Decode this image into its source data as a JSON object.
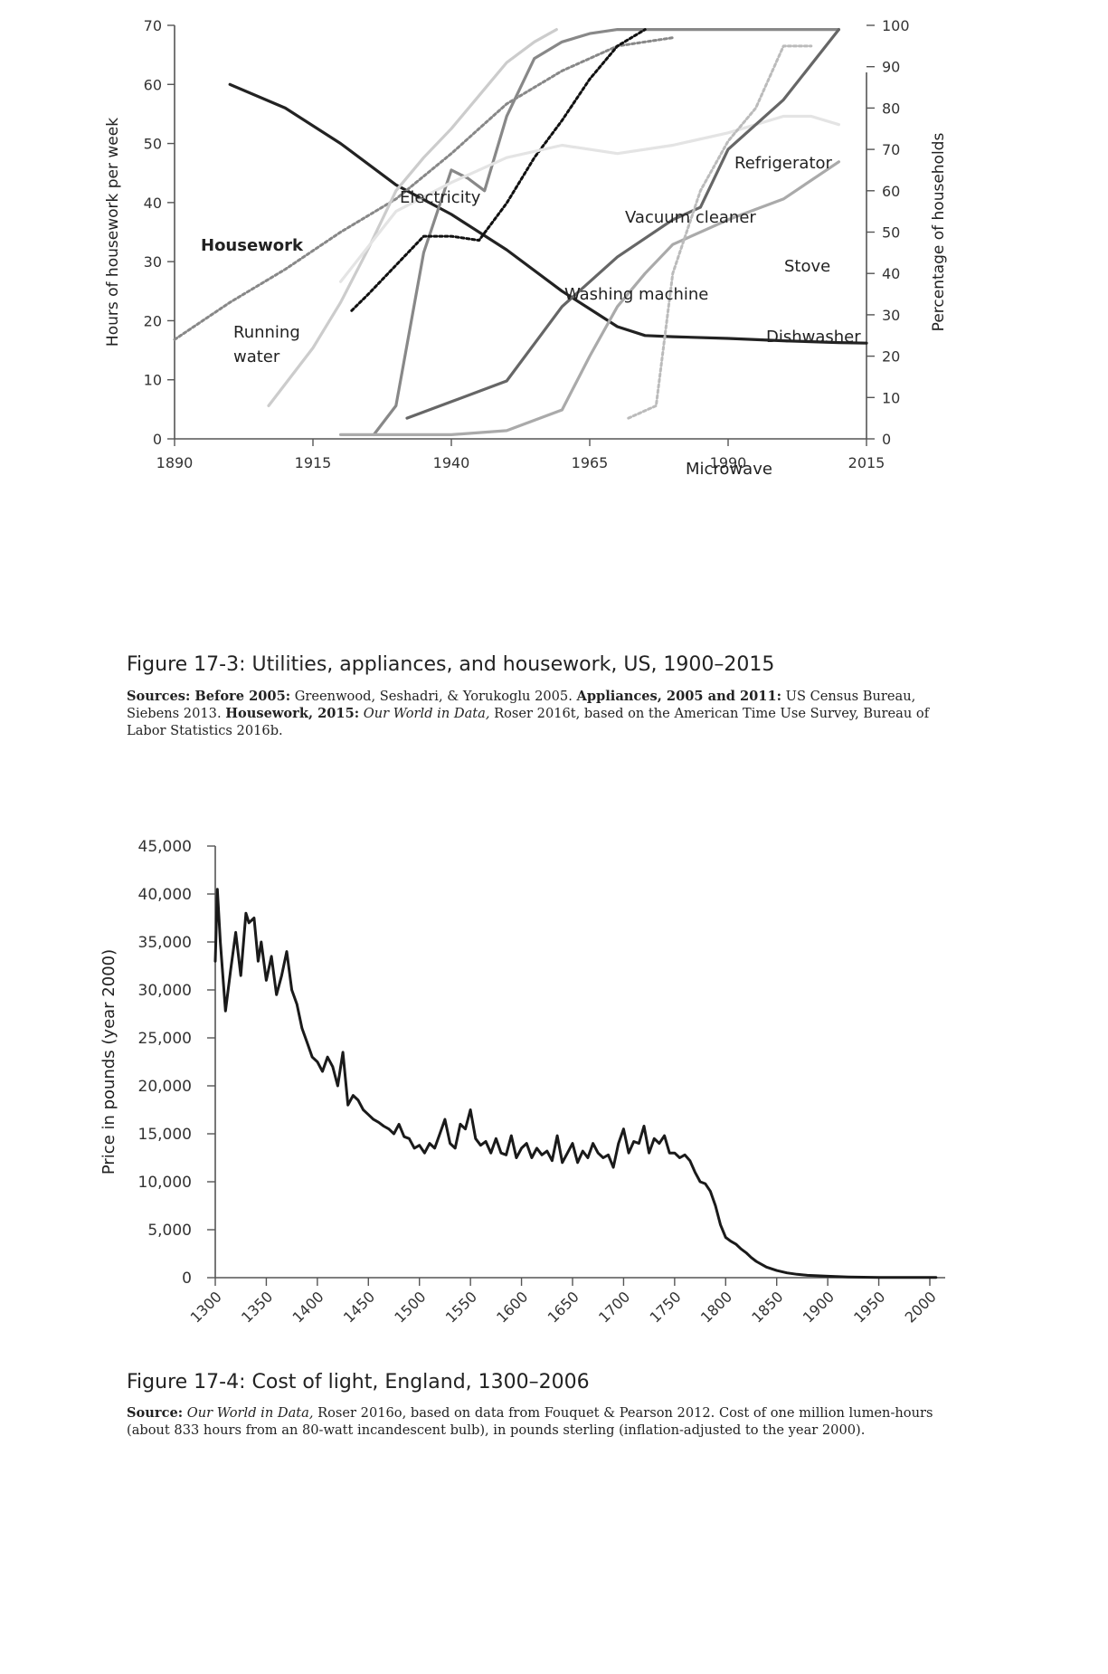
{
  "chart_data": [
    {
      "type": "line",
      "title": "",
      "xlabel": "",
      "ylabel": "Hours of housework per week",
      "y2label": "Percentage of households",
      "xlim": [
        1890,
        2015
      ],
      "ylim": [
        0,
        70
      ],
      "y2lim": [
        0,
        100
      ],
      "x_ticks": [
        "1890",
        "1915",
        "1940",
        "1965",
        "1990",
        "2015"
      ],
      "y_ticks": [
        "0",
        "10",
        "20",
        "30",
        "40",
        "50",
        "60",
        "70"
      ],
      "y2_ticks": [
        "0",
        "10",
        "20",
        "30",
        "40",
        "50",
        "60",
        "70",
        "80",
        "90",
        "100"
      ],
      "grid": false,
      "series": [
        {
          "name": "Housework",
          "axis": "left",
          "style": "solid",
          "color": "#222222",
          "x": [
            1900,
            1910,
            1920,
            1930,
            1940,
            1950,
            1960,
            1965,
            1970,
            1975,
            1980,
            1990,
            2000,
            2010,
            2015
          ],
          "y": [
            60,
            56,
            50,
            43,
            38,
            32,
            25,
            22,
            19,
            17.5,
            17.3,
            17,
            16.6,
            16.3,
            16.2
          ]
        },
        {
          "name": "Running water",
          "axis": "right",
          "style": "dotted",
          "color": "#888888",
          "x": [
            1890,
            1900,
            1910,
            1920,
            1930,
            1940,
            1950,
            1960,
            1970,
            1980
          ],
          "y": [
            24,
            33,
            41,
            50,
            58,
            69,
            81,
            89,
            95,
            97
          ]
        },
        {
          "name": "Electricity",
          "axis": "right",
          "style": "solid",
          "color": "#cccccc",
          "x": [
            1907,
            1915,
            1920,
            1925,
            1930,
            1935,
            1940,
            1945,
            1950,
            1955,
            1959
          ],
          "y": [
            8,
            22,
            33,
            46,
            60,
            68,
            75,
            83,
            91,
            96,
            99
          ]
        },
        {
          "name": "Refrigerator",
          "axis": "right",
          "style": "solid",
          "color": "#888888",
          "x": [
            1926,
            1930,
            1935,
            1940,
            1943,
            1946,
            1950,
            1955,
            1960,
            1965,
            1970,
            1980,
            1990,
            2000,
            2010
          ],
          "y": [
            1,
            8,
            45,
            65,
            63,
            60,
            78,
            92,
            96,
            98,
            99,
            99,
            99,
            99,
            99
          ]
        },
        {
          "name": "Vacuum cleaner",
          "axis": "right",
          "style": "dotted",
          "color": "#111111",
          "x": [
            1922,
            1925,
            1930,
            1935,
            1940,
            1945,
            1950,
            1955,
            1960,
            1965,
            1970,
            1975
          ],
          "y": [
            31,
            35,
            42,
            49,
            49,
            48,
            57,
            68,
            77,
            87,
            95,
            99
          ]
        },
        {
          "name": "Washing machine",
          "axis": "right",
          "style": "solid",
          "color": "#e4e4e4",
          "x": [
            1920,
            1930,
            1940,
            1950,
            1960,
            1970,
            1980,
            1990,
            2000,
            2005,
            2010
          ],
          "y": [
            38,
            55,
            62,
            68,
            71,
            69,
            71,
            74,
            78,
            78,
            76
          ]
        },
        {
          "name": "Stove",
          "axis": "right",
          "style": "solid",
          "color": "#666666",
          "x": [
            1932,
            1940,
            1950,
            1955,
            1960,
            1970,
            1980,
            1985,
            1990,
            2000,
            2010
          ],
          "y": [
            5,
            9,
            14,
            23,
            32,
            44,
            53,
            56,
            70,
            82,
            99
          ]
        },
        {
          "name": "Dishwasher",
          "axis": "right",
          "style": "solid",
          "color": "#aaaaaa",
          "x": [
            1920,
            1940,
            1950,
            1960,
            1965,
            1970,
            1975,
            1980,
            1990,
            2000,
            2010
          ],
          "y": [
            1,
            1,
            2,
            7,
            20,
            32,
            40,
            47,
            53,
            58,
            67
          ]
        },
        {
          "name": "Microwave",
          "axis": "right",
          "style": "dotted",
          "color": "#bbbbbb",
          "x": [
            1972,
            1977,
            1980,
            1985,
            1990,
            1995,
            2000,
            2005
          ],
          "y": [
            5,
            8,
            40,
            60,
            72,
            80,
            95,
            95
          ]
        }
      ]
    },
    {
      "type": "line",
      "title": "",
      "xlabel": "",
      "ylabel": "Price in pounds (year 2000)",
      "xlim": [
        1300,
        2010
      ],
      "ylim": [
        0,
        45000
      ],
      "x_ticks": [
        "1300",
        "1350",
        "1400",
        "1450",
        "1500",
        "1550",
        "1600",
        "1650",
        "1700",
        "1750",
        "1800",
        "1850",
        "1900",
        "1950",
        "2000"
      ],
      "y_ticks": [
        "0",
        "5,000",
        "10,000",
        "15,000",
        "20,000",
        "25,000",
        "30,000",
        "35,000",
        "40,000",
        "45,000"
      ],
      "grid": false,
      "series": [
        {
          "name": "",
          "color": "#1a1a1a",
          "x": [
            1300,
            1302,
            1305,
            1310,
            1315,
            1320,
            1325,
            1330,
            1333,
            1338,
            1342,
            1345,
            1350,
            1355,
            1360,
            1365,
            1370,
            1375,
            1380,
            1385,
            1390,
            1395,
            1400,
            1405,
            1410,
            1415,
            1420,
            1425,
            1430,
            1435,
            1440,
            1445,
            1450,
            1455,
            1460,
            1465,
            1470,
            1475,
            1480,
            1485,
            1490,
            1495,
            1500,
            1505,
            1510,
            1515,
            1520,
            1525,
            1530,
            1535,
            1540,
            1545,
            1550,
            1555,
            1560,
            1565,
            1570,
            1575,
            1580,
            1585,
            1590,
            1595,
            1600,
            1605,
            1610,
            1615,
            1620,
            1625,
            1630,
            1635,
            1640,
            1645,
            1650,
            1655,
            1660,
            1665,
            1670,
            1675,
            1680,
            1685,
            1690,
            1695,
            1700,
            1705,
            1710,
            1715,
            1720,
            1725,
            1730,
            1735,
            1740,
            1745,
            1750,
            1755,
            1760,
            1765,
            1770,
            1775,
            1780,
            1785,
            1790,
            1795,
            1800,
            1805,
            1810,
            1815,
            1820,
            1825,
            1830,
            1840,
            1850,
            1860,
            1870,
            1880,
            1890,
            1900,
            1920,
            1950,
            2006
          ],
          "y": [
            33000,
            40500,
            35000,
            27800,
            32000,
            36000,
            31500,
            38000,
            37000,
            37500,
            33000,
            35000,
            31000,
            33500,
            29500,
            31500,
            34000,
            30000,
            28500,
            26000,
            24500,
            23000,
            22500,
            21500,
            23000,
            22000,
            20000,
            23500,
            18000,
            19000,
            18500,
            17500,
            17000,
            16500,
            16200,
            15800,
            15500,
            15000,
            16000,
            14700,
            14500,
            13500,
            13800,
            13000,
            14000,
            13500,
            15000,
            16500,
            14000,
            13500,
            16000,
            15500,
            17500,
            14500,
            13800,
            14200,
            13000,
            14500,
            13000,
            12800,
            14800,
            12500,
            13500,
            14000,
            12500,
            13500,
            12800,
            13200,
            12200,
            14800,
            12000,
            13000,
            14000,
            12000,
            13200,
            12500,
            14000,
            13000,
            12500,
            12800,
            11500,
            14000,
            15500,
            13000,
            14200,
            14000,
            15800,
            13000,
            14500,
            14000,
            14800,
            13000,
            13000,
            12500,
            12800,
            12200,
            11000,
            10000,
            9800,
            9000,
            7500,
            5500,
            4200,
            3800,
            3500,
            3000,
            2600,
            2100,
            1700,
            1100,
            750,
            500,
            350,
            250,
            200,
            150,
            80,
            30,
            20
          ]
        }
      ]
    }
  ],
  "captions": {
    "fig1_title": "Figure 17-3: Utilities, appliances, and housework, US, 1900–2015",
    "fig1_source": {
      "s1_label": "Sources: Before 2005:",
      "s1_text": " Greenwood, Seshadri, & Yorukoglu 2005. ",
      "s2_label": "Appliances, 2005 and 2011:",
      "s2_text": " US Census Bureau, Siebens 2013. ",
      "s3_label": "Housework, 2015:",
      "s3_italic": " Our World in Data,",
      "s3_text": " Roser 2016t, based on the American Time Use Survey, Bureau of Labor Statistics 2016b."
    },
    "fig2_title": "Figure 17-4: Cost of light, England, 1300–2006",
    "fig2_source": {
      "label": "Source:",
      "italic": " Our World in Data,",
      "text": " Roser 2016o, based on data from Fouquet & Pearson 2012. Cost of one million lumen-hours (about 833 hours from an 80-watt incandescent bulb), in pounds sterling (inflation-adjusted to the year 2000)."
    }
  }
}
